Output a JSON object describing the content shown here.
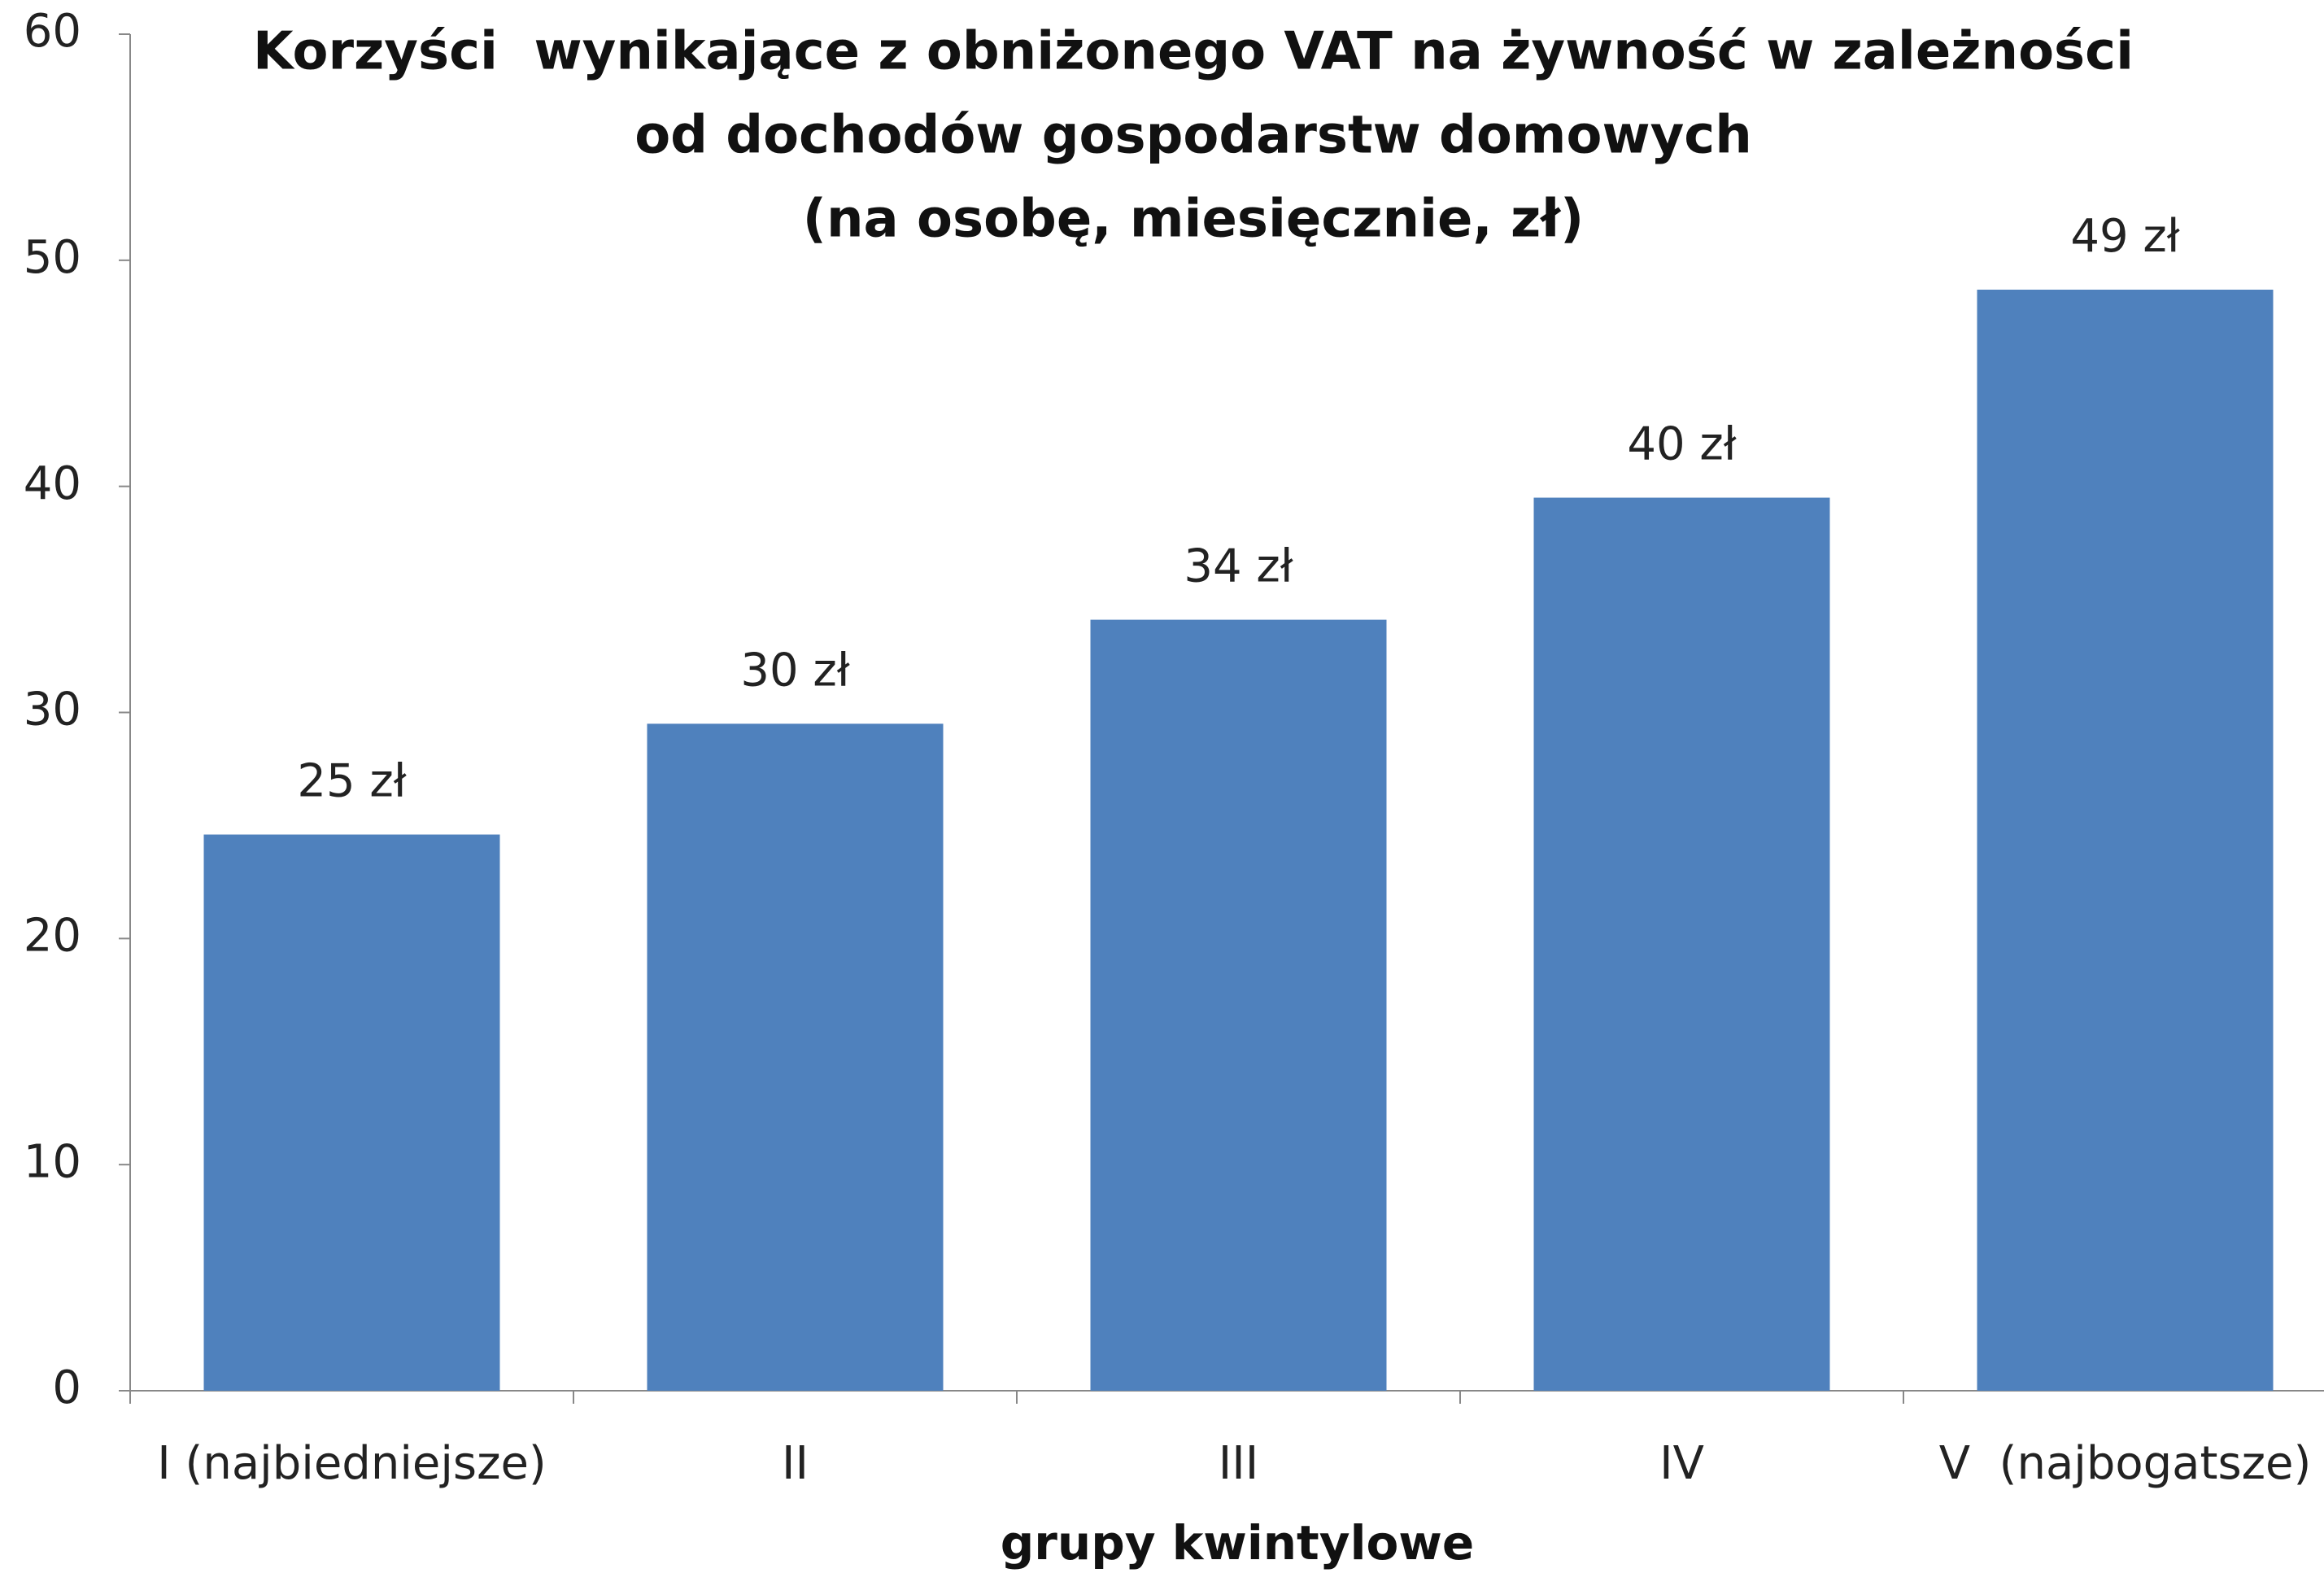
{
  "chart_data": {
    "type": "bar",
    "title": [
      "Korzyści  wynikające z obniżonego VAT na żywność w zależności",
      "od dochodów gospodarstw domowych",
      "(na osobę, miesięcznie, zł)"
    ],
    "x_label": "grupy kwintylowe",
    "categories": [
      "I (najbiedniejsze)",
      "II",
      "III",
      "IV",
      "V  (najbogatsze)"
    ],
    "values": [
      24.6,
      29.5,
      34.1,
      39.5,
      48.7
    ],
    "value_labels": [
      "25 zł",
      "30 zł",
      "34 zł",
      "40 zł",
      "49 zł"
    ],
    "color": "#4f81bd",
    "ylim": [
      0,
      60
    ],
    "yticks": [
      0,
      10,
      20,
      30,
      40,
      50,
      60
    ],
    "grid": false
  }
}
